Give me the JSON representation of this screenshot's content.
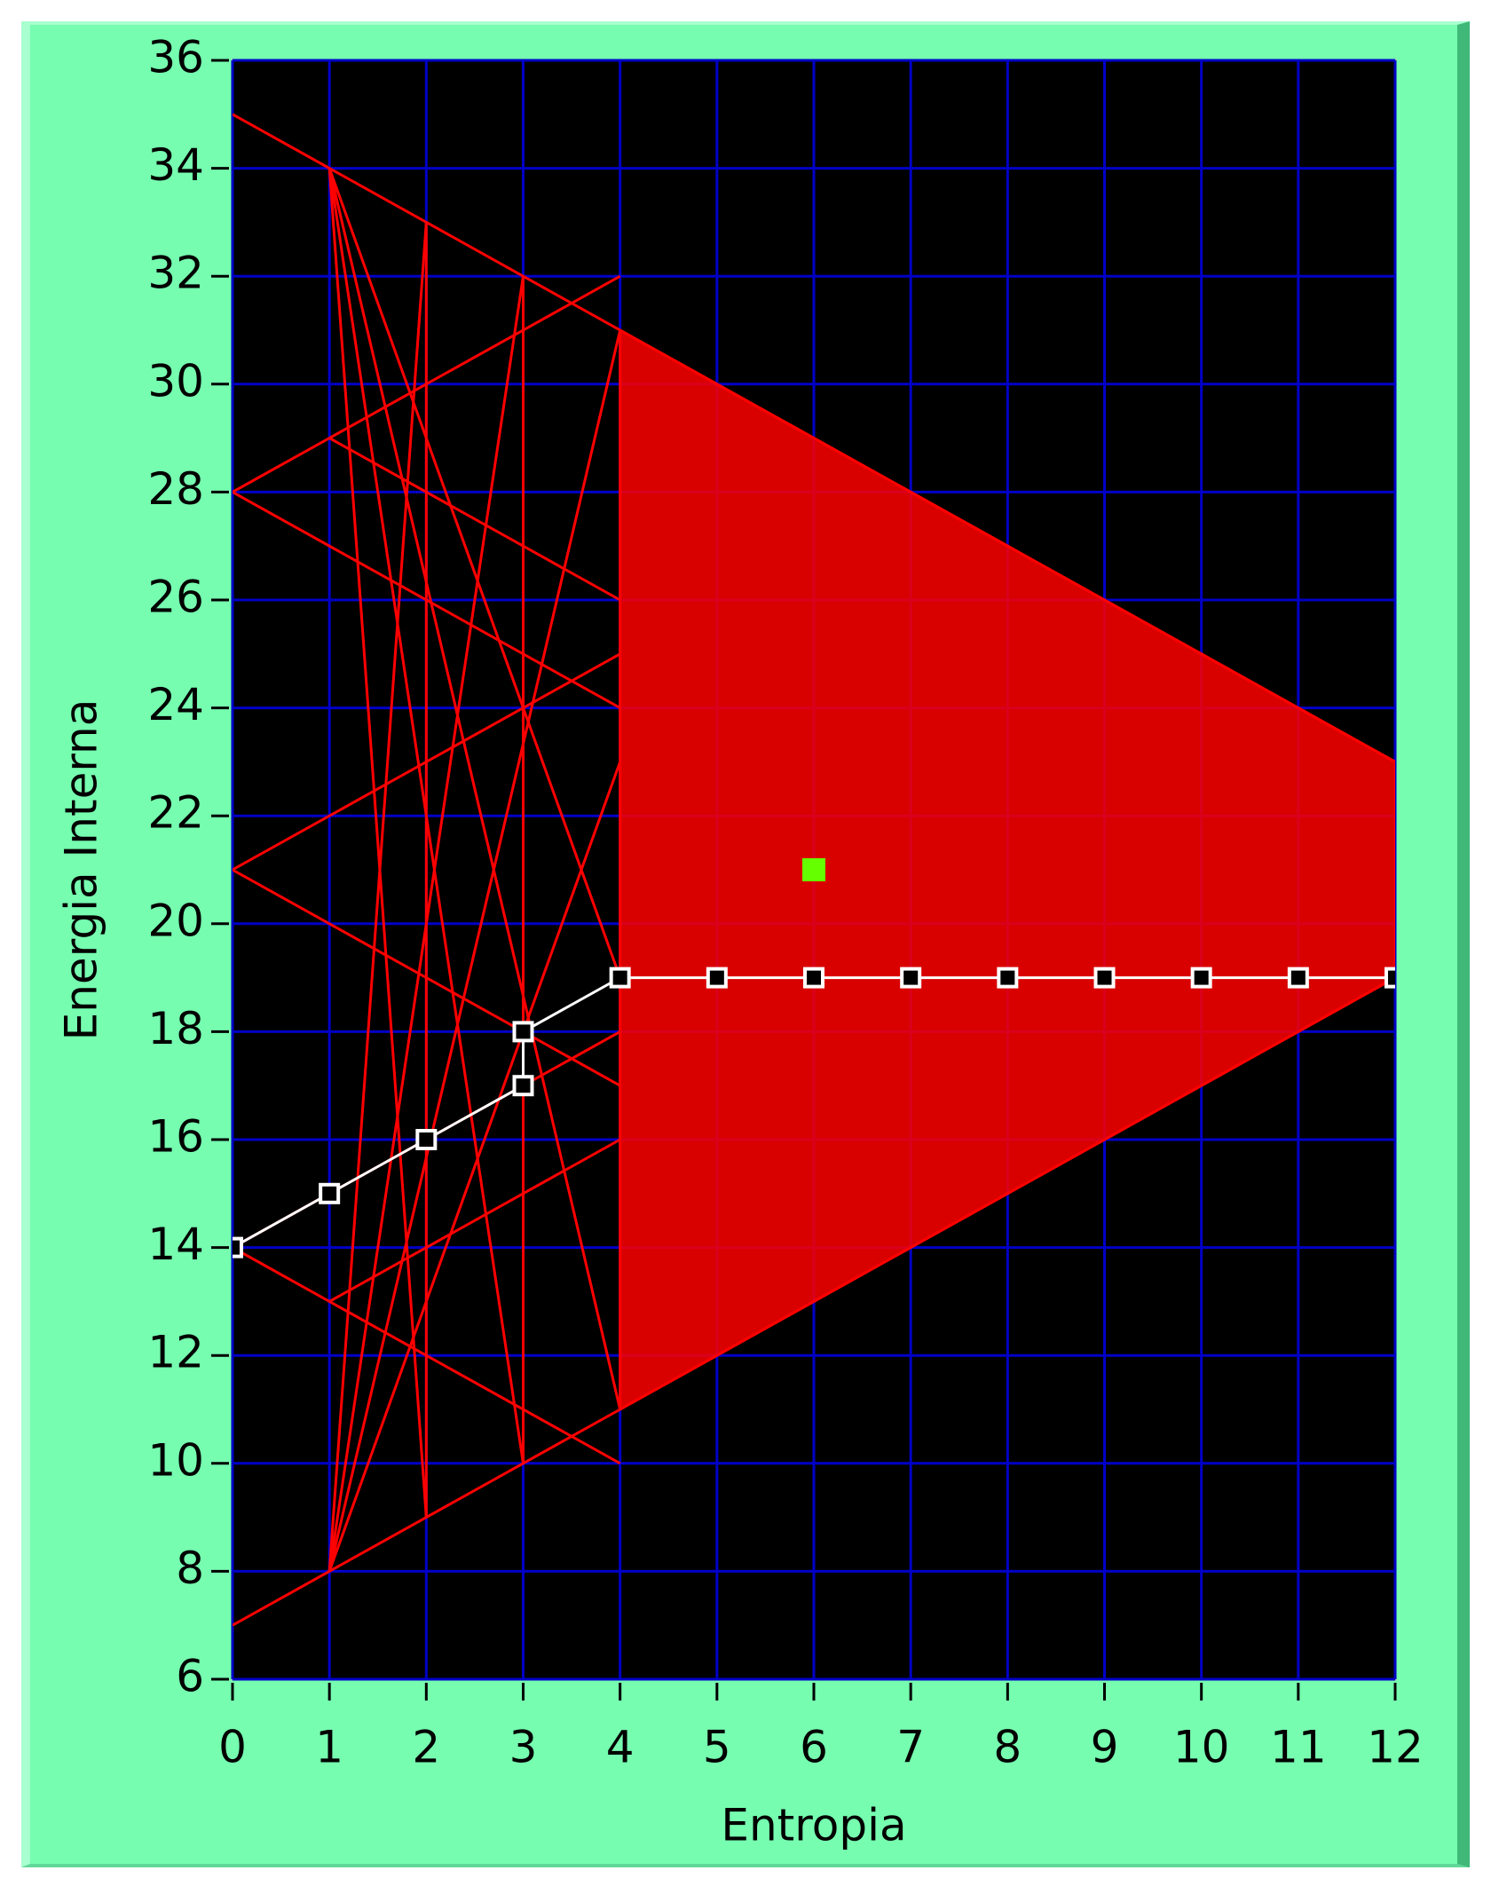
{
  "chart_data": {
    "type": "line",
    "xlabel": "Entropia",
    "ylabel": "Energia Interna",
    "xlim": [
      0,
      12
    ],
    "ylim": [
      6,
      36
    ],
    "xticks": [
      0,
      1,
      2,
      3,
      4,
      5,
      6,
      7,
      8,
      9,
      10,
      11,
      12
    ],
    "yticks": [
      6,
      8,
      10,
      12,
      14,
      16,
      18,
      20,
      22,
      24,
      26,
      28,
      30,
      32,
      34,
      36
    ],
    "grid": true,
    "grid_color": "#0000c8",
    "background": "#000000",
    "series": [
      {
        "color": "#ff0000",
        "fill": true,
        "x": [
          4,
          12,
          12,
          4
        ],
        "values": [
          31,
          23,
          19,
          11
        ]
      },
      {
        "color": "#ff0000",
        "x": [
          0,
          12
        ],
        "values": [
          35,
          23
        ]
      },
      {
        "color": "#ff0000",
        "x": [
          0,
          12
        ],
        "values": [
          7,
          19
        ]
      },
      {
        "color": "#ff0000",
        "x": [
          1,
          2
        ],
        "values": [
          34,
          9
        ]
      },
      {
        "color": "#ff0000",
        "x": [
          1,
          3
        ],
        "values": [
          34,
          10
        ]
      },
      {
        "color": "#ff0000",
        "x": [
          1,
          4
        ],
        "values": [
          34,
          11
        ]
      },
      {
        "color": "#ff0000",
        "x": [
          1,
          4
        ],
        "values": [
          34,
          19
        ]
      },
      {
        "color": "#ff0000",
        "x": [
          1,
          2
        ],
        "values": [
          8,
          33
        ]
      },
      {
        "color": "#ff0000",
        "x": [
          1,
          3
        ],
        "values": [
          8,
          32
        ]
      },
      {
        "color": "#ff0000",
        "x": [
          1,
          4
        ],
        "values": [
          8,
          31
        ]
      },
      {
        "color": "#ff0000",
        "x": [
          1,
          4
        ],
        "values": [
          8,
          23
        ]
      },
      {
        "color": "#ff0000",
        "x": [
          2,
          2
        ],
        "values": [
          33,
          9
        ]
      },
      {
        "color": "#ff0000",
        "x": [
          3,
          3
        ],
        "values": [
          32,
          10
        ]
      },
      {
        "color": "#ff0000",
        "x": [
          0,
          4
        ],
        "values": [
          28,
          32
        ]
      },
      {
        "color": "#ff0000",
        "x": [
          0,
          4
        ],
        "values": [
          28,
          24
        ]
      },
      {
        "color": "#ff0000",
        "x": [
          0,
          4
        ],
        "values": [
          21,
          25
        ]
      },
      {
        "color": "#ff0000",
        "x": [
          0,
          4
        ],
        "values": [
          21,
          17
        ]
      },
      {
        "color": "#ff0000",
        "x": [
          0,
          4
        ],
        "values": [
          14,
          18
        ]
      },
      {
        "color": "#ff0000",
        "x": [
          0,
          4
        ],
        "values": [
          14,
          10
        ]
      },
      {
        "color": "#ff0000",
        "x": [
          1,
          4
        ],
        "values": [
          29,
          26
        ]
      },
      {
        "color": "#ff0000",
        "x": [
          1,
          4
        ],
        "values": [
          13,
          16
        ]
      },
      {
        "color": "#ffffff",
        "markers": true,
        "x": [
          0,
          1,
          2,
          3,
          3,
          4,
          5,
          6,
          7,
          8,
          9,
          10,
          11,
          12
        ],
        "values": [
          14,
          15,
          16,
          17,
          18,
          19,
          19,
          19,
          19,
          19,
          19,
          19,
          19,
          19
        ]
      },
      {
        "color": "#66ff00",
        "point": true,
        "x": [
          6
        ],
        "values": [
          21
        ]
      }
    ]
  }
}
